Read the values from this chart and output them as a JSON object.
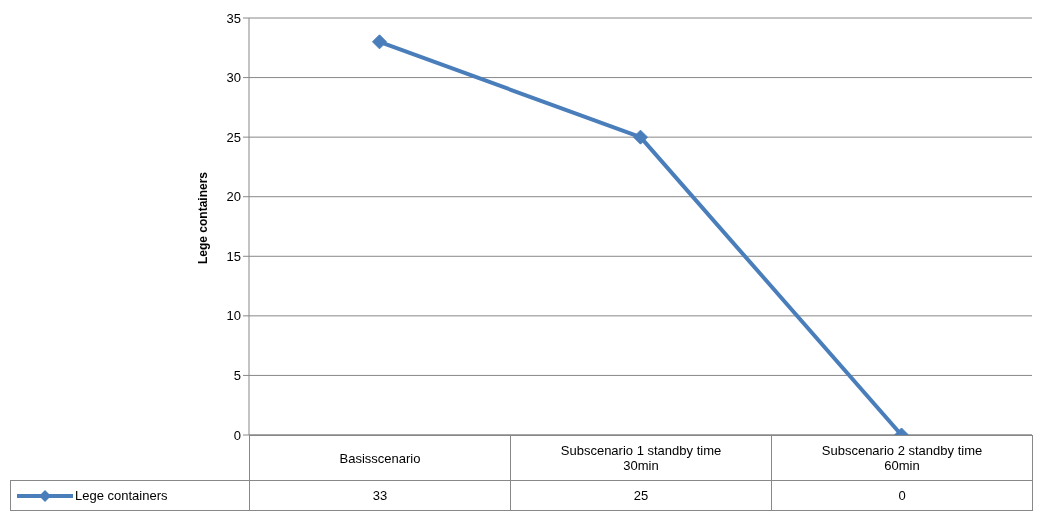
{
  "chart_data": {
    "type": "line",
    "ylabel": "Lege containers",
    "categories": [
      "Basisscenario",
      "Subscenario 1 standby time 30min",
      "Subscenario 2 standby time 60min"
    ],
    "series": [
      {
        "name": "Lege containers",
        "color": "#4a7ebb",
        "values": [
          33,
          25,
          0
        ]
      }
    ],
    "ylim": [
      0,
      35
    ],
    "yticks": [
      0,
      5,
      10,
      15,
      20,
      25,
      30,
      35
    ],
    "grid": "y",
    "legend": "bottom left",
    "marker": "diamond",
    "line_style": "solid",
    "data_labels": true
  }
}
